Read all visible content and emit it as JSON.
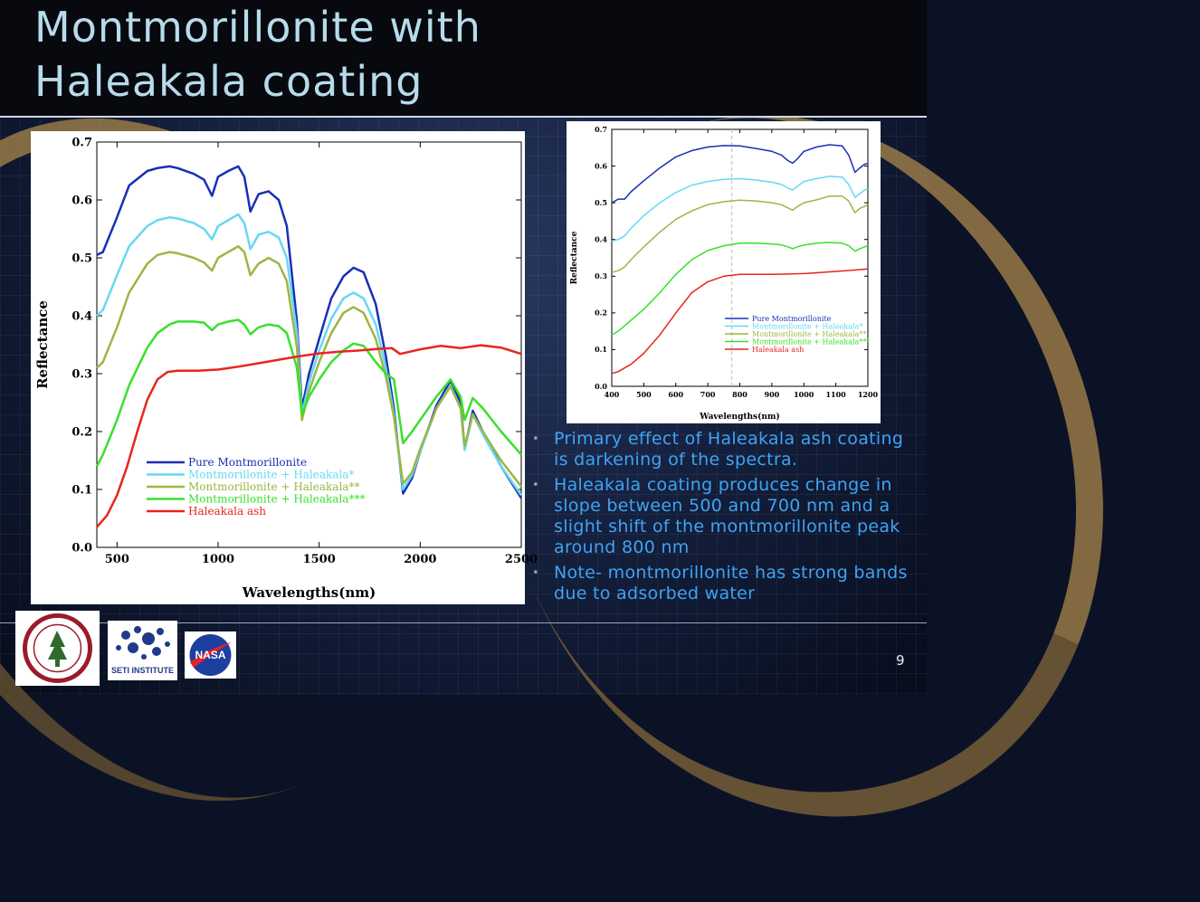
{
  "slide": {
    "title_line1": "Montmorillonite with",
    "title_line2": "Haleakala coating",
    "page_number": "9",
    "bullets": [
      "Primary effect of Haleakala ash coating is darkening of the spectra.",
      "Haleakala coating produces change in slope between 500 and 700 nm and a slight shift of the montmorillonite peak around 800 nm",
      "Note- montmorillonite has strong bands due to adsorbed water"
    ],
    "logos": {
      "seti": "SETI INSTITUTE",
      "nasa": "NASA"
    }
  },
  "colors": {
    "title": "#b7dbea",
    "bullet_text": "#3fa3f4",
    "pure": "#1a2fb5",
    "haleakala1": "#66d8f5",
    "haleakala2": "#9cb644",
    "haleakala3": "#38e02c",
    "ash": "#e8251e"
  },
  "chart_data": [
    {
      "type": "line",
      "xlabel": "Wavelengths(nm)",
      "ylabel": "Reflectance",
      "xlim": [
        400,
        2500
      ],
      "ylim": [
        0,
        0.7
      ],
      "xticks": [
        500,
        1000,
        1500,
        2000,
        2500
      ],
      "yticks": [
        0.0,
        0.1,
        0.2,
        0.3,
        0.4,
        0.5,
        0.6,
        0.7
      ],
      "legend_position": "lower-left",
      "series": [
        {
          "name": "Pure Montmorillonite",
          "color": "#1a2fb5",
          "x": [
            400,
            430,
            500,
            560,
            650,
            700,
            760,
            800,
            880,
            930,
            970,
            1000,
            1050,
            1100,
            1130,
            1160,
            1200,
            1250,
            1300,
            1340,
            1390,
            1415,
            1450,
            1500,
            1560,
            1620,
            1670,
            1720,
            1780,
            1830,
            1870,
            1915,
            1960,
            2000,
            2080,
            2150,
            2200,
            2220,
            2260,
            2310,
            2400,
            2500
          ],
          "y": [
            0.505,
            0.51,
            0.57,
            0.625,
            0.65,
            0.655,
            0.658,
            0.655,
            0.645,
            0.635,
            0.607,
            0.64,
            0.65,
            0.658,
            0.64,
            0.58,
            0.61,
            0.615,
            0.6,
            0.555,
            0.39,
            0.24,
            0.3,
            0.36,
            0.43,
            0.468,
            0.483,
            0.475,
            0.42,
            0.33,
            0.24,
            0.093,
            0.12,
            0.165,
            0.245,
            0.288,
            0.25,
            0.17,
            0.236,
            0.2,
            0.14,
            0.085
          ]
        },
        {
          "name": "Montmorillonite + Haleakala*",
          "color": "#66d8f5",
          "x": [
            400,
            430,
            500,
            560,
            650,
            700,
            760,
            800,
            880,
            930,
            970,
            1000,
            1050,
            1100,
            1130,
            1160,
            1200,
            1250,
            1300,
            1340,
            1390,
            1415,
            1450,
            1500,
            1560,
            1620,
            1670,
            1720,
            1780,
            1830,
            1870,
            1915,
            1960,
            2000,
            2080,
            2150,
            2200,
            2220,
            2260,
            2310,
            2400,
            2500
          ],
          "y": [
            0.4,
            0.41,
            0.47,
            0.52,
            0.555,
            0.565,
            0.57,
            0.568,
            0.56,
            0.55,
            0.532,
            0.555,
            0.565,
            0.575,
            0.56,
            0.515,
            0.54,
            0.545,
            0.535,
            0.5,
            0.37,
            0.23,
            0.285,
            0.34,
            0.395,
            0.43,
            0.44,
            0.43,
            0.385,
            0.31,
            0.23,
            0.1,
            0.125,
            0.165,
            0.24,
            0.28,
            0.24,
            0.168,
            0.23,
            0.195,
            0.14,
            0.09
          ]
        },
        {
          "name": "Montmorillonite + Haleakala**",
          "color": "#9cb644",
          "x": [
            400,
            430,
            500,
            560,
            650,
            700,
            760,
            800,
            880,
            930,
            970,
            1000,
            1050,
            1100,
            1130,
            1160,
            1200,
            1250,
            1300,
            1340,
            1390,
            1415,
            1450,
            1500,
            1560,
            1620,
            1670,
            1720,
            1780,
            1830,
            1870,
            1915,
            1960,
            2000,
            2080,
            2150,
            2200,
            2220,
            2260,
            2310,
            2400,
            2500
          ],
          "y": [
            0.31,
            0.32,
            0.38,
            0.44,
            0.49,
            0.505,
            0.51,
            0.508,
            0.5,
            0.492,
            0.478,
            0.5,
            0.51,
            0.52,
            0.51,
            0.47,
            0.49,
            0.5,
            0.49,
            0.46,
            0.345,
            0.22,
            0.27,
            0.32,
            0.37,
            0.405,
            0.415,
            0.405,
            0.36,
            0.295,
            0.225,
            0.11,
            0.13,
            0.17,
            0.24,
            0.278,
            0.24,
            0.175,
            0.23,
            0.2,
            0.15,
            0.105
          ]
        },
        {
          "name": "Montmorillonite + Haleakala***",
          "color": "#38e02c",
          "x": [
            400,
            430,
            500,
            560,
            650,
            700,
            760,
            800,
            880,
            930,
            970,
            1000,
            1050,
            1100,
            1130,
            1160,
            1200,
            1250,
            1300,
            1340,
            1390,
            1415,
            1450,
            1500,
            1560,
            1620,
            1670,
            1720,
            1780,
            1830,
            1870,
            1915,
            1960,
            2000,
            2080,
            2150,
            2200,
            2220,
            2260,
            2310,
            2400,
            2500
          ],
          "y": [
            0.14,
            0.16,
            0.22,
            0.28,
            0.345,
            0.37,
            0.385,
            0.39,
            0.39,
            0.388,
            0.375,
            0.385,
            0.39,
            0.393,
            0.385,
            0.368,
            0.38,
            0.385,
            0.382,
            0.37,
            0.31,
            0.23,
            0.26,
            0.29,
            0.32,
            0.34,
            0.352,
            0.348,
            0.32,
            0.3,
            0.29,
            0.18,
            0.2,
            0.22,
            0.26,
            0.29,
            0.26,
            0.22,
            0.258,
            0.24,
            0.2,
            0.16
          ]
        },
        {
          "name": "Haleakala ash",
          "color": "#e8251e",
          "x": [
            400,
            450,
            500,
            550,
            600,
            650,
            700,
            750,
            800,
            900,
            1000,
            1100,
            1200,
            1300,
            1400,
            1500,
            1600,
            1700,
            1800,
            1860,
            1900,
            1950,
            2000,
            2100,
            2200,
            2300,
            2400,
            2500
          ],
          "y": [
            0.035,
            0.055,
            0.09,
            0.14,
            0.2,
            0.255,
            0.29,
            0.303,
            0.305,
            0.305,
            0.307,
            0.312,
            0.318,
            0.324,
            0.33,
            0.335,
            0.338,
            0.34,
            0.343,
            0.344,
            0.334,
            0.338,
            0.342,
            0.348,
            0.344,
            0.349,
            0.345,
            0.334
          ]
        }
      ]
    },
    {
      "type": "line",
      "xlabel": "Wavelengths(nm)",
      "ylabel": "Reflectance",
      "xlim": [
        400,
        1200
      ],
      "ylim": [
        0,
        0.7
      ],
      "xticks": [
        400,
        500,
        600,
        700,
        800,
        900,
        1000,
        1100,
        1200
      ],
      "yticks": [
        0.0,
        0.1,
        0.2,
        0.3,
        0.4,
        0.5,
        0.6,
        0.7
      ],
      "vline_x": 775,
      "legend_position": "lower-right",
      "series": [
        {
          "name": "Pure Montmorillonite",
          "color": "#1a2fb5",
          "x": [
            400,
            420,
            440,
            460,
            500,
            550,
            600,
            650,
            700,
            750,
            800,
            850,
            900,
            930,
            950,
            965,
            980,
            1000,
            1040,
            1080,
            1120,
            1140,
            1160,
            1175,
            1190,
            1200
          ],
          "y": [
            0.5,
            0.51,
            0.51,
            0.53,
            0.56,
            0.595,
            0.625,
            0.642,
            0.652,
            0.656,
            0.655,
            0.648,
            0.64,
            0.63,
            0.615,
            0.608,
            0.62,
            0.64,
            0.652,
            0.658,
            0.655,
            0.63,
            0.583,
            0.595,
            0.605,
            0.607
          ]
        },
        {
          "name": "Montmorillonite + Haleakala*",
          "color": "#66d8f5",
          "x": [
            400,
            420,
            440,
            460,
            500,
            550,
            600,
            650,
            700,
            750,
            800,
            850,
            900,
            930,
            950,
            965,
            980,
            1000,
            1040,
            1080,
            1120,
            1140,
            1160,
            1175,
            1190,
            1200
          ],
          "y": [
            0.395,
            0.4,
            0.41,
            0.43,
            0.465,
            0.5,
            0.528,
            0.548,
            0.558,
            0.564,
            0.566,
            0.562,
            0.556,
            0.55,
            0.54,
            0.535,
            0.545,
            0.558,
            0.566,
            0.572,
            0.57,
            0.55,
            0.515,
            0.525,
            0.535,
            0.538
          ]
        },
        {
          "name": "Montmorillonite + Haleakala**",
          "color": "#9cb644",
          "x": [
            400,
            420,
            440,
            460,
            500,
            550,
            600,
            650,
            700,
            750,
            800,
            850,
            900,
            930,
            950,
            965,
            980,
            1000,
            1040,
            1080,
            1120,
            1140,
            1160,
            1175,
            1190,
            1200
          ],
          "y": [
            0.31,
            0.315,
            0.325,
            0.345,
            0.38,
            0.42,
            0.455,
            0.478,
            0.495,
            0.503,
            0.507,
            0.505,
            0.5,
            0.495,
            0.486,
            0.48,
            0.49,
            0.5,
            0.508,
            0.518,
            0.518,
            0.505,
            0.473,
            0.485,
            0.49,
            0.495
          ]
        },
        {
          "name": "Montmorillonite + Haleakala***",
          "color": "#38e02c",
          "x": [
            400,
            420,
            440,
            460,
            500,
            550,
            600,
            650,
            700,
            750,
            800,
            850,
            900,
            930,
            950,
            965,
            980,
            1000,
            1040,
            1080,
            1120,
            1140,
            1160,
            1175,
            1190,
            1200
          ],
          "y": [
            0.14,
            0.15,
            0.165,
            0.18,
            0.21,
            0.255,
            0.305,
            0.345,
            0.37,
            0.383,
            0.39,
            0.39,
            0.388,
            0.385,
            0.38,
            0.375,
            0.38,
            0.385,
            0.39,
            0.392,
            0.39,
            0.383,
            0.368,
            0.375,
            0.38,
            0.383
          ]
        },
        {
          "name": "Haleakala ash",
          "color": "#e8251e",
          "x": [
            400,
            420,
            440,
            460,
            500,
            550,
            600,
            650,
            700,
            750,
            800,
            850,
            900,
            950,
            1000,
            1050,
            1100,
            1150,
            1200
          ],
          "y": [
            0.035,
            0.04,
            0.05,
            0.06,
            0.09,
            0.14,
            0.2,
            0.255,
            0.285,
            0.3,
            0.305,
            0.305,
            0.305,
            0.306,
            0.307,
            0.31,
            0.313,
            0.316,
            0.32
          ]
        }
      ]
    }
  ]
}
